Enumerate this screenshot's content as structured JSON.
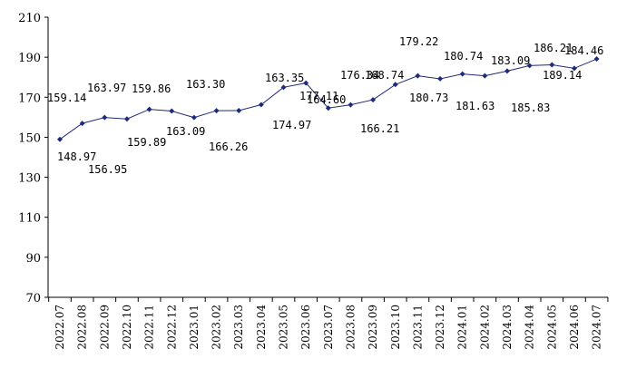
{
  "chart_data": {
    "type": "line",
    "title": "",
    "xlabel": "",
    "ylabel": "",
    "ylim": [
      70,
      210
    ],
    "yticks": [
      70,
      90,
      110,
      130,
      150,
      170,
      190,
      210
    ],
    "grid": false,
    "legend": "none",
    "line_color": "#1f2a7a",
    "marker": "diamond",
    "categories": [
      "2022.07",
      "2022.08",
      "2022.09",
      "2022.10",
      "2022.11",
      "2022.12",
      "2023.01",
      "2023.02",
      "2023.03",
      "2023.04",
      "2023.05",
      "2023.06",
      "2023.07",
      "2023.08",
      "2023.09",
      "2023.10",
      "2023.11",
      "2023.12",
      "2024.01",
      "2024.02",
      "2024.03",
      "2024.04",
      "2024.05",
      "2024.06",
      "2024.07"
    ],
    "series": [
      {
        "values": [
          148.97,
          156.95,
          159.89,
          159.14,
          163.97,
          163.09,
          159.86,
          163.3,
          163.35,
          166.26,
          174.97,
          177.11,
          164.6,
          166.21,
          168.74,
          176.34,
          180.73,
          179.22,
          181.63,
          180.74,
          183.09,
          185.83,
          186.21,
          184.46,
          189.14
        ],
        "labels": [
          "148.97",
          "156.95",
          "159.89",
          "159.14",
          "163.97",
          "163.09",
          "159.86",
          "163.30",
          "163.35",
          "166.26",
          "174.97",
          "177.11",
          "164.60",
          "166.21",
          "168.74",
          "176.34",
          "180.73",
          "179.22",
          "181.63",
          "180.74",
          "183.09",
          "185.83",
          "186.21",
          "184.46",
          "189.14"
        ]
      }
    ]
  }
}
